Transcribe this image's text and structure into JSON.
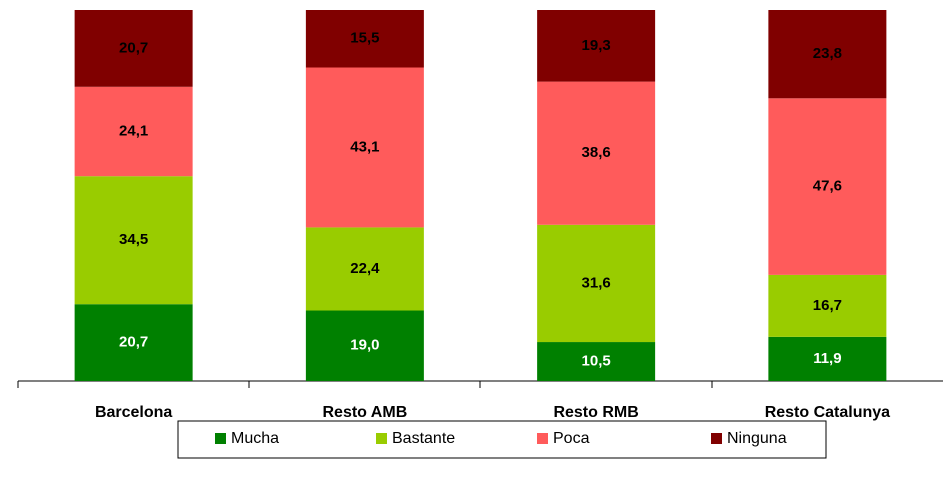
{
  "chart_data": {
    "type": "stacked_bar",
    "categories": [
      "Barcelona",
      "Resto AMB",
      "Resto RMB",
      "Resto Catalunya"
    ],
    "series": [
      {
        "name": "Mucha",
        "color": "#008000",
        "values": [
          20.7,
          19.0,
          10.5,
          11.9
        ],
        "value_labels": [
          "20,7",
          "19,0",
          "10,5",
          "11,9"
        ]
      },
      {
        "name": "Bastante",
        "color": "#99cc00",
        "values": [
          34.5,
          22.4,
          31.6,
          16.7
        ],
        "value_labels": [
          "34,5",
          "22,4",
          "31,6",
          "16,7"
        ]
      },
      {
        "name": "Poca",
        "color": "#ff5b5b",
        "values": [
          24.1,
          43.1,
          38.6,
          47.6
        ],
        "value_labels": [
          "24,1",
          "43,1",
          "38,6",
          "47,6"
        ]
      },
      {
        "name": "Ninguna",
        "color": "#800000",
        "values": [
          20.7,
          15.5,
          19.3,
          23.8
        ],
        "value_labels": [
          "20,7",
          "15,5",
          "19,3",
          "23,8"
        ]
      }
    ],
    "ylim": [
      0,
      100
    ]
  }
}
